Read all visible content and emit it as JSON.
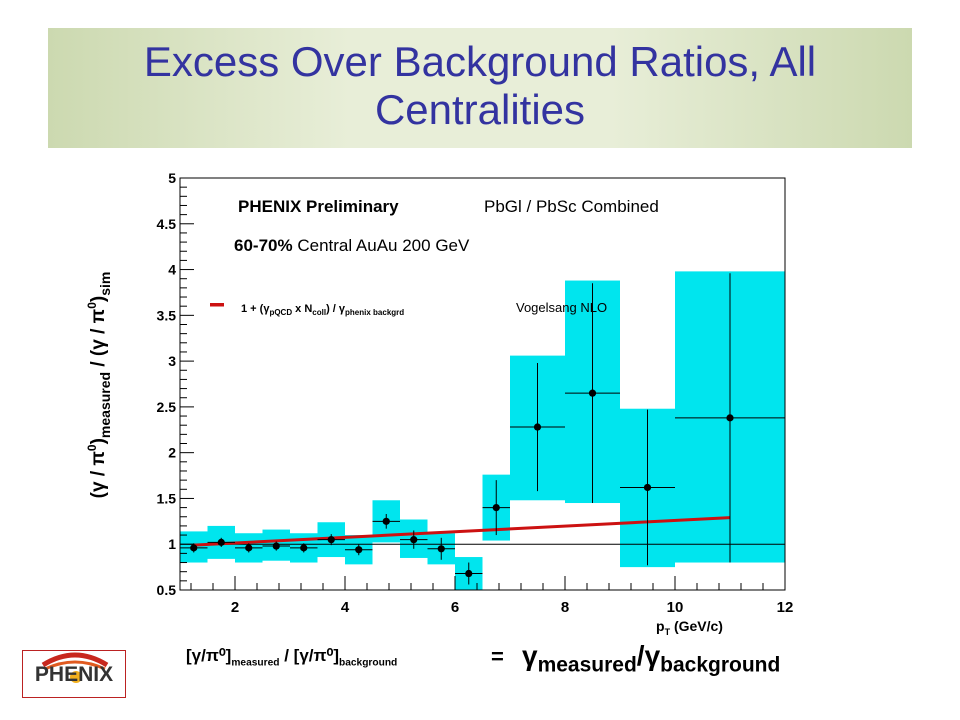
{
  "slide": {
    "title": "Excess Over Background Ratios,  All Centralities"
  },
  "formula": {
    "lhs_text": "[γ/π⁰]",
    "lhs_sub1": "measured",
    "lhs_mid": " / [γ/π⁰]",
    "lhs_sub2": "background",
    "equals": "=",
    "rhs_gamma1": "γ",
    "rhs_sub1": "measured",
    "rhs_slash": "/γ",
    "rhs_sub2": "background"
  },
  "logo": {
    "text": "PHENIX",
    "icon": "phenix-firebird-icon"
  },
  "colors": {
    "band": "#00e5ee",
    "fit": "#cc1111",
    "title": "#3333a0"
  },
  "chart_data": {
    "type": "scatter",
    "xlabel": "p",
    "xlabel_sub": "T",
    "xlabel_unit": " (GeV/c)",
    "ylabel_parts": [
      "(γ / π",
      "0",
      ")",
      "measured",
      " / (γ / π",
      "0",
      ")",
      "sim"
    ],
    "xlim": [
      1.0,
      12.0
    ],
    "ylim": [
      0.5,
      5.0
    ],
    "xticks": [
      2,
      4,
      6,
      8,
      10,
      12
    ],
    "xtick_labels": [
      "2",
      "4",
      "6",
      "8",
      "10",
      "12"
    ],
    "yticks": [
      0.5,
      1,
      1.5,
      2,
      2.5,
      3,
      3.5,
      4,
      4.5,
      5
    ],
    "ytick_labels": [
      "0.5",
      "1",
      "1.5",
      "2",
      "2.5",
      "3",
      "3.5",
      "4",
      "4.5",
      "5"
    ],
    "annotations": {
      "experiment": "PHENIX Preliminary",
      "detector": "PbGl / PbSc Combined",
      "centrality_bold": "60-70%",
      "centrality_rest": " Central AuAu 200 GeV",
      "legend_formula": "1 + (γ",
      "legend_sub1": "pQCD",
      "legend_mid": " x N",
      "legend_sub2": "coll",
      "legend_mid2": ") / γ",
      "legend_sub3": "phenix backgrd",
      "legend_model": "Vogelsang NLO",
      "legend_position": "upper-left"
    },
    "reference_line": 1.0,
    "points": [
      {
        "x": 1.25,
        "y": 0.96,
        "xerr": 0.25,
        "yerr": 0.05,
        "sys_lo": 0.8,
        "sys_hi": 1.14
      },
      {
        "x": 1.75,
        "y": 1.02,
        "xerr": 0.25,
        "yerr": 0.05,
        "sys_lo": 0.84,
        "sys_hi": 1.2
      },
      {
        "x": 2.25,
        "y": 0.96,
        "xerr": 0.25,
        "yerr": 0.05,
        "sys_lo": 0.8,
        "sys_hi": 1.12
      },
      {
        "x": 2.75,
        "y": 0.98,
        "xerr": 0.25,
        "yerr": 0.05,
        "sys_lo": 0.82,
        "sys_hi": 1.16
      },
      {
        "x": 3.25,
        "y": 0.96,
        "xerr": 0.25,
        "yerr": 0.05,
        "sys_lo": 0.8,
        "sys_hi": 1.12
      },
      {
        "x": 3.75,
        "y": 1.05,
        "xerr": 0.25,
        "yerr": 0.06,
        "sys_lo": 0.86,
        "sys_hi": 1.24
      },
      {
        "x": 4.25,
        "y": 0.94,
        "xerr": 0.25,
        "yerr": 0.06,
        "sys_lo": 0.78,
        "sys_hi": 1.1
      },
      {
        "x": 4.75,
        "y": 1.25,
        "xerr": 0.25,
        "yerr": 0.08,
        "sys_lo": 1.02,
        "sys_hi": 1.48
      },
      {
        "x": 5.25,
        "y": 1.05,
        "xerr": 0.25,
        "yerr": 0.1,
        "sys_lo": 0.85,
        "sys_hi": 1.27
      },
      {
        "x": 5.75,
        "y": 0.95,
        "xerr": 0.25,
        "yerr": 0.12,
        "sys_lo": 0.78,
        "sys_hi": 1.12
      },
      {
        "x": 6.25,
        "y": 0.68,
        "xerr": 0.25,
        "yerr": 0.12,
        "sys_lo": 0.5,
        "sys_hi": 0.86
      },
      {
        "x": 6.75,
        "y": 1.4,
        "xerr": 0.25,
        "yerr": 0.3,
        "sys_lo": 1.04,
        "sys_hi": 1.76
      },
      {
        "x": 7.5,
        "y": 2.28,
        "xerr": 0.5,
        "yerr": 0.7,
        "sys_lo": 1.48,
        "sys_hi": 3.06
      },
      {
        "x": 8.5,
        "y": 2.65,
        "xerr": 0.5,
        "yerr": 1.2,
        "sys_lo": 1.45,
        "sys_hi": 3.88
      },
      {
        "x": 9.5,
        "y": 1.62,
        "xerr": 0.5,
        "yerr": 0.85,
        "sys_lo": 0.75,
        "sys_hi": 2.48
      },
      {
        "x": 11.0,
        "y": 2.38,
        "xerr": 1.0,
        "yerr": 1.58,
        "sys_lo": 0.8,
        "sys_hi": 3.98
      }
    ],
    "fit_curve": {
      "x": [
        1.25,
        11.0
      ],
      "y": [
        0.99,
        1.29
      ]
    }
  }
}
